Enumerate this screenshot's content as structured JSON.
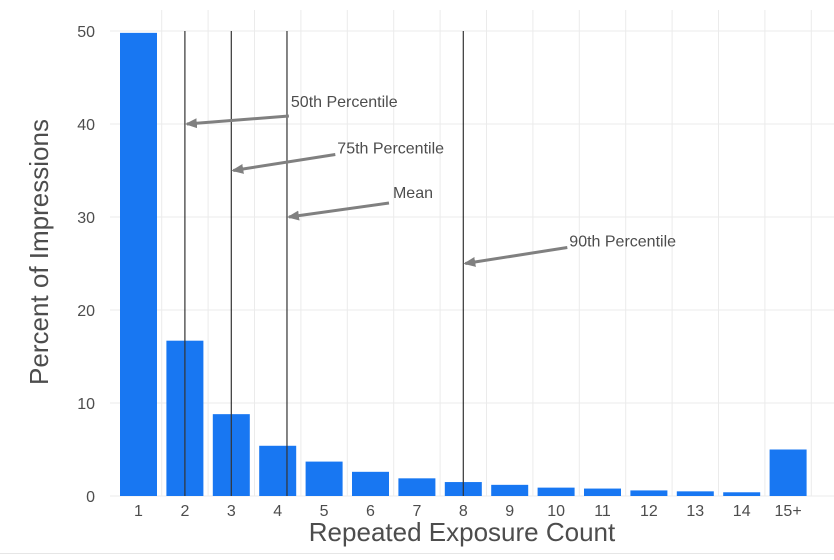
{
  "chart_data": {
    "type": "bar",
    "categories": [
      "1",
      "2",
      "3",
      "4",
      "5",
      "6",
      "7",
      "8",
      "9",
      "10",
      "11",
      "12",
      "13",
      "14",
      "15+"
    ],
    "values": [
      49.8,
      16.7,
      8.8,
      5.4,
      3.7,
      2.6,
      1.9,
      1.5,
      1.2,
      0.9,
      0.8,
      0.6,
      0.5,
      0.4,
      5.0
    ],
    "xlabel": "Repeated Exposure Count",
    "ylabel": "Percent of Impressions",
    "ylim": [
      0,
      50
    ],
    "yticks": [
      0,
      10,
      20,
      30,
      40,
      50
    ],
    "grid": true,
    "bar_color": "#1877f2",
    "reference_lines": [
      {
        "label": "50th Percentile",
        "x": 2,
        "arrow_y": 40
      },
      {
        "label": "75th Percentile",
        "x": 3,
        "arrow_y": 35
      },
      {
        "label": "Mean",
        "x": 4.2,
        "arrow_y": 30
      },
      {
        "label": "90th Percentile",
        "x": 8,
        "arrow_y": 25
      }
    ],
    "line_color": "#333333",
    "arrow_color": "#808080"
  }
}
